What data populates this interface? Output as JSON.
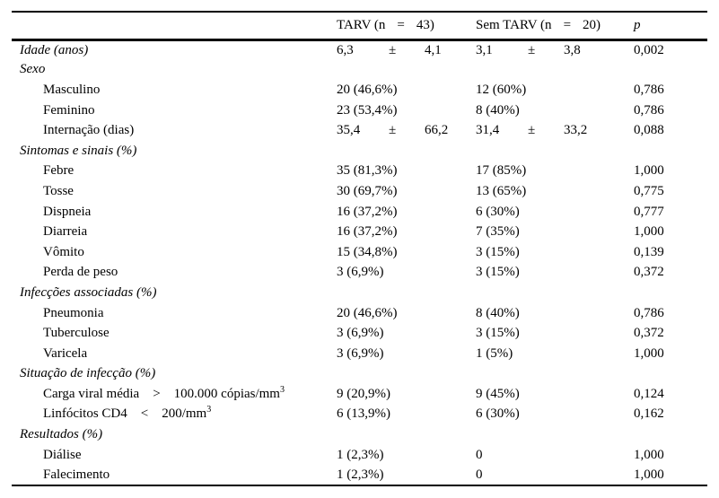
{
  "colors": {
    "text": "#000000",
    "background": "#ffffff",
    "rule": "#000000"
  },
  "header": {
    "col_label": "",
    "col_tarv": {
      "prefix": "TARV (n",
      "eq": "=",
      "n": "43)"
    },
    "col_sem_tarv": {
      "prefix": "Sem TARV (n",
      "eq": "=",
      "n": "20)"
    },
    "col_p": "p"
  },
  "rows": [
    {
      "label": "Idade (anos)",
      "italic": true,
      "indent": false,
      "tarv": {
        "v1": "6,3",
        "pm": "±",
        "v2": "4,1"
      },
      "sem": {
        "v1": "3,1",
        "pm": "±",
        "v2": "3,8"
      },
      "p": "0,002"
    },
    {
      "label": "Sexo",
      "italic": true,
      "indent": false
    },
    {
      "label": "Masculino",
      "indent": true,
      "tarv": "20 (46,6%)",
      "sem": "12 (60%)",
      "p": "0,786"
    },
    {
      "label": "Feminino",
      "indent": true,
      "tarv": "23 (53,4%)",
      "sem": "8 (40%)",
      "p": "0,786"
    },
    {
      "label": "Internação (dias)",
      "indent": true,
      "tarv": {
        "v1": "35,4",
        "pm": "±",
        "v2": "66,2"
      },
      "sem": {
        "v1": "31,4",
        "pm": "±",
        "v2": "33,2"
      },
      "p": "0,088"
    },
    {
      "label": "Sintomas e sinais (%)",
      "italic": true
    },
    {
      "label": "Febre",
      "indent": true,
      "tarv": "35 (81,3%)",
      "sem": "17 (85%)",
      "p": "1,000"
    },
    {
      "label": "Tosse",
      "indent": true,
      "tarv": "30 (69,7%)",
      "sem": "13 (65%)",
      "p": "0,775"
    },
    {
      "label": "Dispneia",
      "indent": true,
      "tarv": "16 (37,2%)",
      "sem": "6 (30%)",
      "p": "0,777"
    },
    {
      "label": "Diarreia",
      "indent": true,
      "tarv": "16 (37,2%)",
      "sem": "7 (35%)",
      "p": "1,000"
    },
    {
      "label": "Vômito",
      "indent": true,
      "tarv": "15 (34,8%)",
      "sem": "3 (15%)",
      "p": "0,139"
    },
    {
      "label": "Perda de peso",
      "indent": true,
      "tarv": "3 (6,9%)",
      "sem": "3 (15%)",
      "p": "0,372"
    },
    {
      "label": "Infecções associadas (%)",
      "italic": true
    },
    {
      "label": "Pneumonia",
      "indent": true,
      "tarv": "20 (46,6%)",
      "sem": "8 (40%)",
      "p": "0,786"
    },
    {
      "label": "Tuberculose",
      "indent": true,
      "tarv": "3 (6,9%)",
      "sem": "3 (15%)",
      "p": "0,372"
    },
    {
      "label": "Varicela",
      "indent": true,
      "tarv": "3 (6,9%)",
      "sem": "1 (5%)",
      "p": "1,000"
    },
    {
      "label": "Situação de infecção (%)",
      "italic": true
    },
    {
      "label": {
        "text": "Carga viral média",
        "op": ">",
        "value": "100.000 cópias/mm",
        "sup": "3"
      },
      "indent": true,
      "tarv": "9 (20,9%)",
      "sem": "9 (45%)",
      "p": "0,124"
    },
    {
      "label": {
        "text": "Linfócitos CD4",
        "op": "<",
        "value": "200/mm",
        "sup": "3"
      },
      "indent": true,
      "tarv": "6 (13,9%)",
      "sem": "6 (30%)",
      "p": "0,162"
    },
    {
      "label": "Resultados (%)",
      "italic": true
    },
    {
      "label": "Diálise",
      "indent": true,
      "tarv": "1 (2,3%)",
      "sem": "0",
      "p": "1,000"
    },
    {
      "label": "Falecimento",
      "indent": true,
      "tarv": "1 (2,3%)",
      "sem": "0",
      "p": "1,000"
    }
  ]
}
